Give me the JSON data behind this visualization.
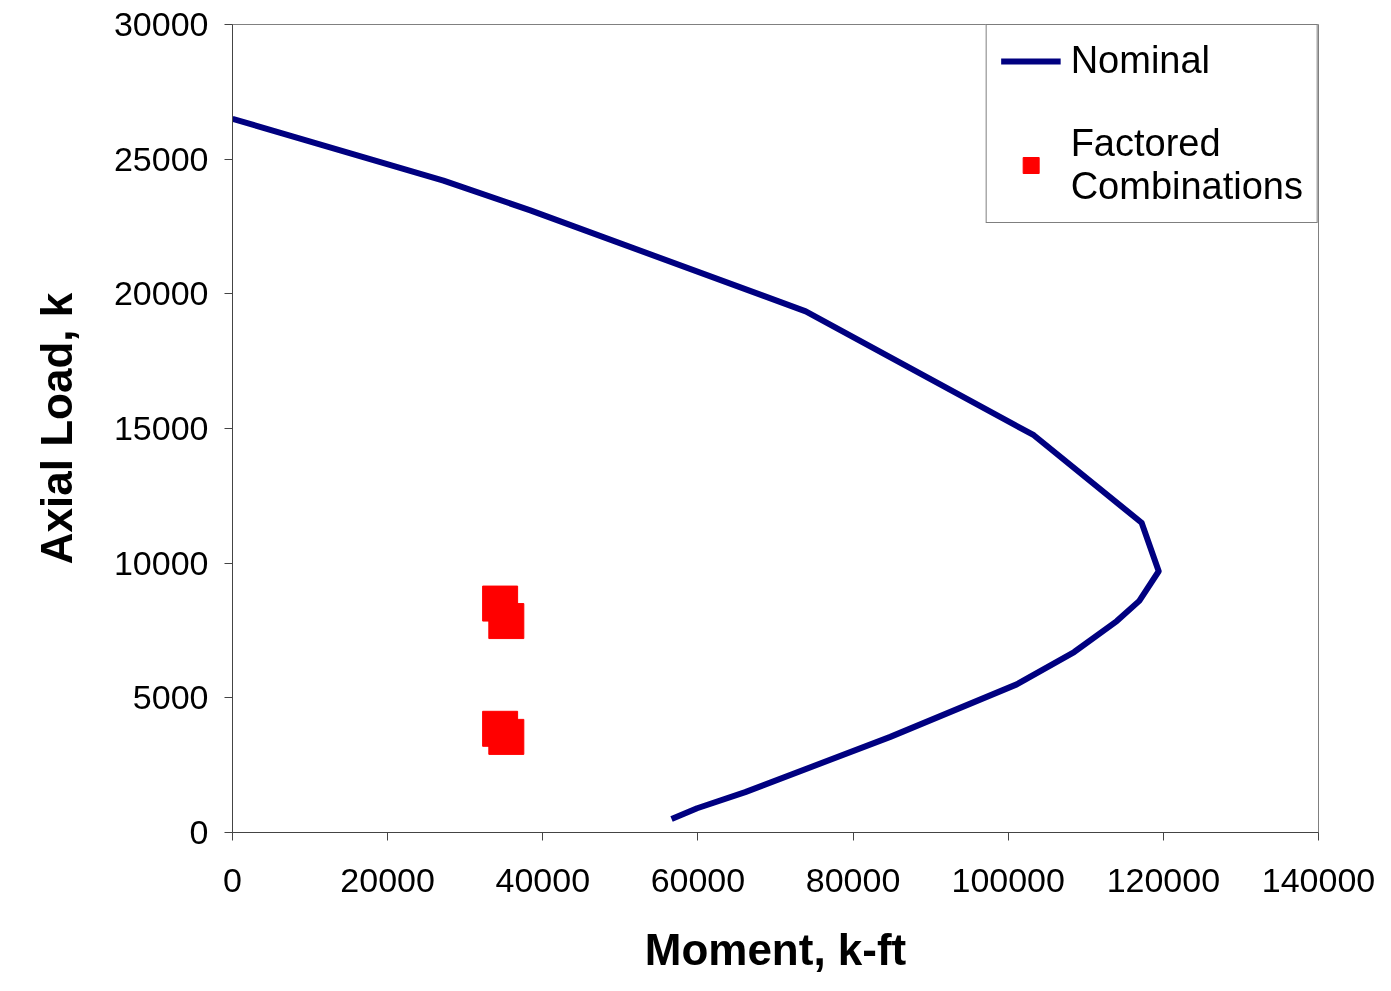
{
  "chart_data": {
    "type": "line",
    "xlabel": "Moment, k-ft",
    "ylabel": "Axial Load, k",
    "xlim": [
      0,
      140000
    ],
    "ylim": [
      0,
      30000
    ],
    "xticks": [
      0,
      20000,
      40000,
      60000,
      80000,
      100000,
      120000,
      140000
    ],
    "yticks": [
      0,
      5000,
      10000,
      15000,
      20000,
      25000,
      30000
    ],
    "grid": false,
    "legend": "top right",
    "series": [
      {
        "name": "Nominal",
        "color": "#000080",
        "marker": "none",
        "line_style": "solid",
        "x": [
          0,
          27200,
          38400,
          73900,
          103300,
          117200,
          119400,
          116900,
          114000,
          108500,
          101100,
          84800,
          66100,
          59900,
          56600
        ],
        "values": [
          26500,
          24200,
          23100,
          19350,
          14750,
          11500,
          9700,
          8600,
          7850,
          6700,
          5500,
          3550,
          1500,
          900,
          500
        ]
      },
      {
        "name": "Factored Combinations",
        "type": "scatter",
        "color": "#ff0000",
        "marker": "square",
        "x": [
          34500,
          35300,
          34500,
          35300
        ],
        "values": [
          8500,
          7850,
          3850,
          3550
        ]
      }
    ]
  }
}
